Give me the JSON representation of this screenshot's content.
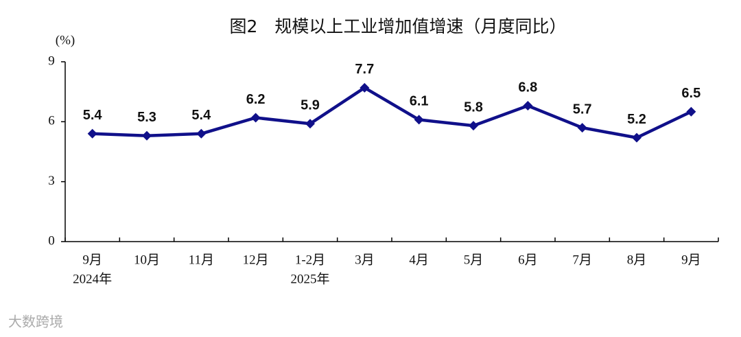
{
  "chart_data": {
    "type": "line",
    "title": "图2　规模以上工业增加值增速（月度同比）",
    "y_unit": "(%)",
    "categories": [
      "9月",
      "10月",
      "11月",
      "12月",
      "1-2月",
      "3月",
      "4月",
      "5月",
      "6月",
      "7月",
      "8月",
      "9月"
    ],
    "category_years": [
      "2024年",
      null,
      null,
      null,
      "2025年",
      null,
      null,
      null,
      null,
      null,
      null,
      null
    ],
    "values": [
      5.4,
      5.3,
      5.4,
      6.2,
      5.9,
      7.7,
      6.1,
      5.8,
      6.8,
      5.7,
      5.2,
      6.5
    ],
    "color": "#10108a",
    "ylim": [
      0,
      9
    ],
    "yticks": [
      0,
      3,
      6,
      9
    ],
    "watermark": "大数跨境"
  }
}
